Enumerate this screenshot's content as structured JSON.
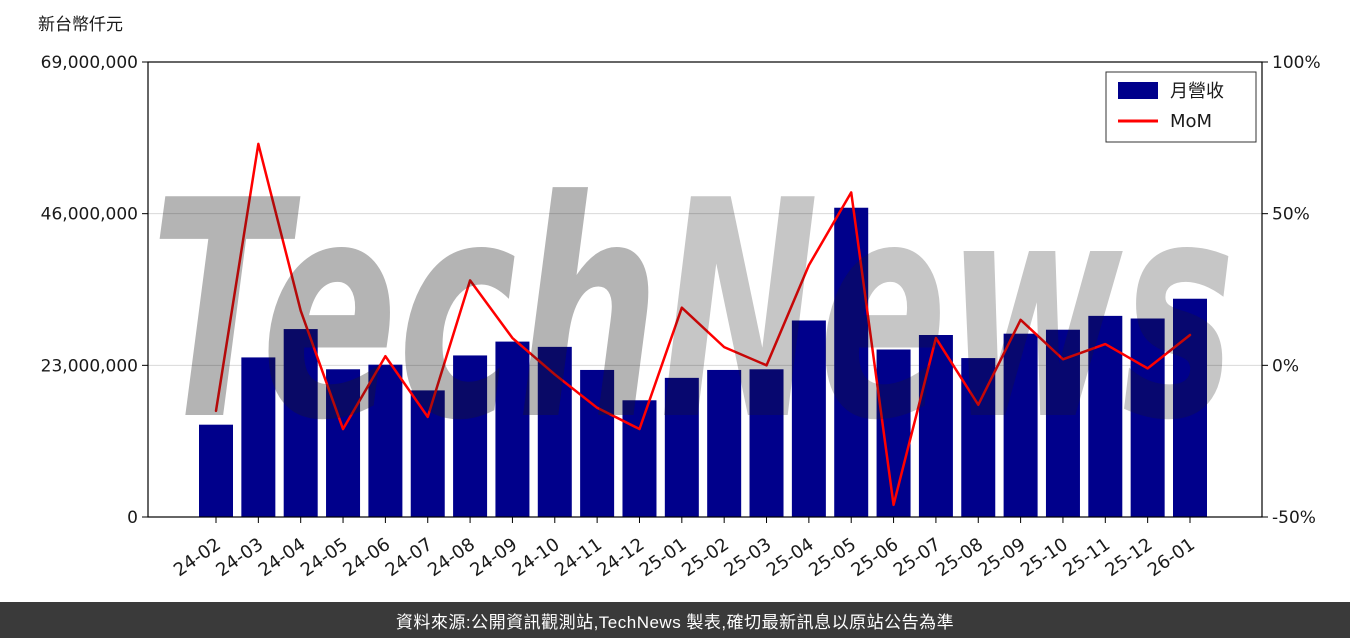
{
  "header": {
    "unit_label": "新台幣仟元"
  },
  "footer": {
    "text": "資料來源:公開資訊觀測站,TechNews 製表,確切最新訊息以原站公告為準"
  },
  "watermark": {
    "part1": "Tech",
    "part2": "News",
    "gray_color": "#808080",
    "red_color": "#ff0000"
  },
  "chart_data": {
    "type": "bar",
    "title": "",
    "categories": [
      "24-02",
      "24-03",
      "24-04",
      "24-05",
      "24-06",
      "24-07",
      "24-08",
      "24-09",
      "24-10",
      "24-11",
      "24-12",
      "25-01",
      "25-02",
      "25-03",
      "25-04",
      "25-05",
      "25-06",
      "25-07",
      "25-08",
      "25-09",
      "25-10",
      "25-11",
      "25-12",
      "26-01"
    ],
    "series": [
      {
        "name": "月營收",
        "type": "bar",
        "axis": "left",
        "color": "#00008b",
        "values": [
          14000000,
          24200000,
          28500000,
          22400000,
          23100000,
          19200000,
          24500000,
          26600000,
          25800000,
          22300000,
          17700000,
          21100000,
          22300000,
          22400000,
          29800000,
          46900000,
          25400000,
          27600000,
          24100000,
          27800000,
          28400000,
          30500000,
          30100000,
          33100000
        ]
      },
      {
        "name": "MoM",
        "type": "line",
        "axis": "right",
        "color": "#ff0000",
        "values": [
          -15,
          73,
          18,
          -21,
          3,
          -17,
          28,
          9,
          -3,
          -14,
          -21,
          19,
          6,
          0,
          33,
          57,
          -46,
          9,
          -13,
          15,
          2,
          7,
          -1,
          10
        ]
      }
    ],
    "left_axis": {
      "label": "新台幣仟元",
      "range": [
        0,
        69000000
      ],
      "ticks": [
        0,
        23000000,
        46000000,
        69000000
      ],
      "tick_labels": [
        "0",
        "23,000,000",
        "46,000,000",
        "69,000,000"
      ]
    },
    "right_axis": {
      "range": [
        -50,
        100
      ],
      "ticks": [
        -50,
        0,
        50,
        100
      ],
      "tick_labels": [
        "-50%",
        "0%",
        "50%",
        "100%"
      ]
    },
    "legend": {
      "position": "top-right",
      "items": [
        {
          "label": "月營收",
          "swatch": "bar",
          "color": "#00008b"
        },
        {
          "label": "MoM",
          "swatch": "line",
          "color": "#ff0000"
        }
      ]
    },
    "grid": true,
    "grid_color": "#d9d9d9"
  }
}
